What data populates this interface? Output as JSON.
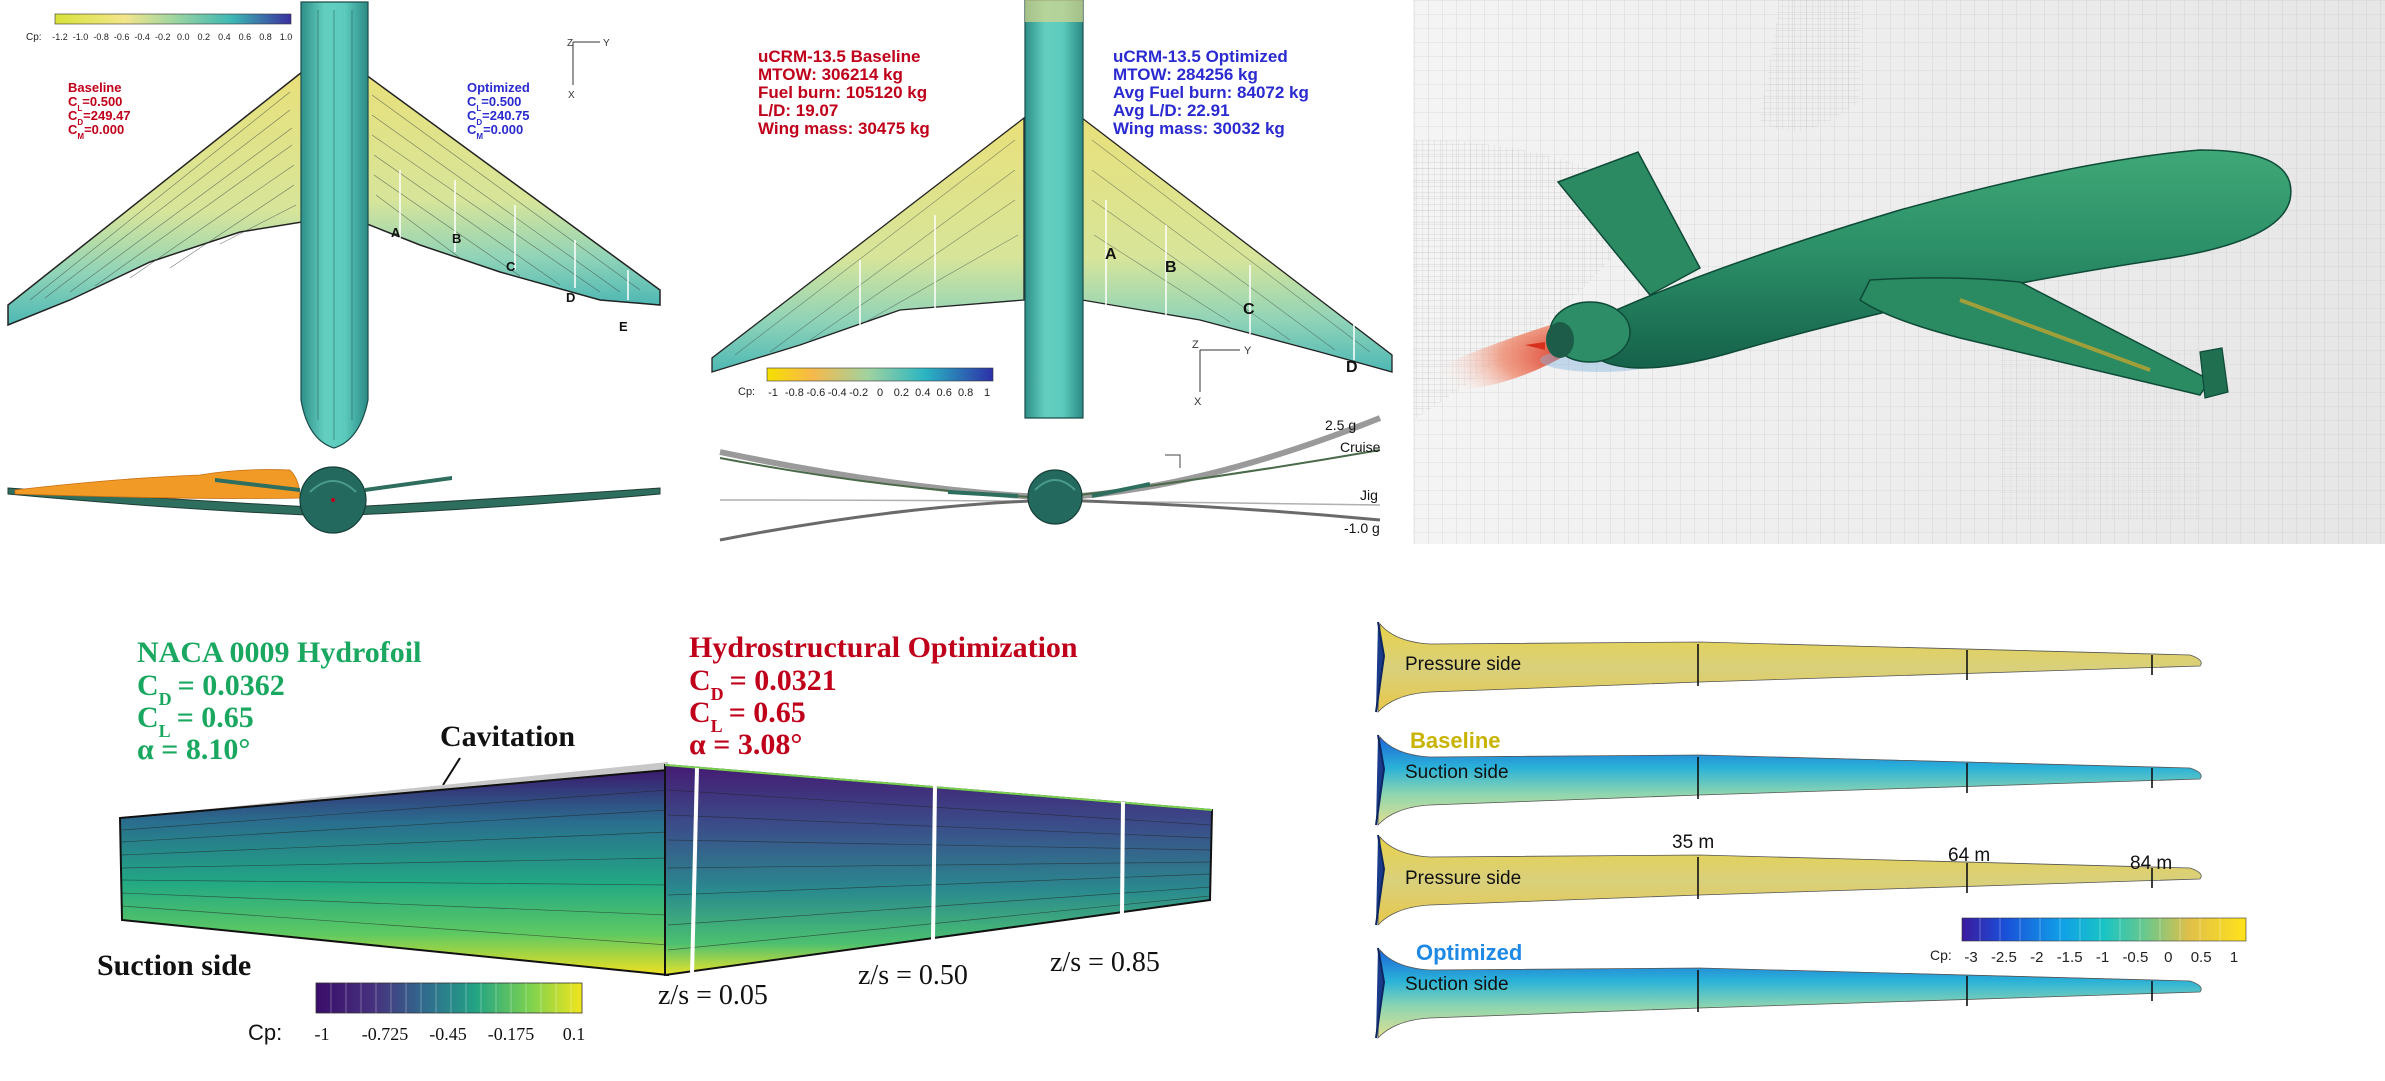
{
  "colors": {
    "red": "#c0001a",
    "blue": "#2a2ad0",
    "green": "#1aa860",
    "gold": "#c8b400",
    "azure": "#1e88e5",
    "teal": "#2aa58a"
  },
  "panel1": {
    "colorbar_label": "Cp:",
    "colorbar_ticks": [
      "-1.2",
      "-1.0",
      "-0.8",
      "-0.6",
      "-0.4",
      "-0.2",
      "0.0",
      "0.2",
      "0.4",
      "0.6",
      "0.8",
      "1.0"
    ],
    "axes": {
      "z": "Z",
      "y": "Y",
      "x": "X"
    },
    "baseline": {
      "title": "Baseline",
      "cl": "=0.500",
      "cd": "=249.47",
      "cm": "=0.000"
    },
    "optimized": {
      "title": "Optimized",
      "cl": "=0.500",
      "cd": "=240.75",
      "cm": "=0.000"
    },
    "coef_letter": "C",
    "sub": {
      "l": "L",
      "d": "D",
      "m": "M"
    },
    "stations": [
      "A",
      "B",
      "C",
      "D",
      "E"
    ]
  },
  "panel2": {
    "baseline": [
      "uCRM-13.5 Baseline",
      "MTOW: 306214 kg",
      "Fuel burn: 105120 kg",
      "L/D: 19.07",
      "Wing mass: 30475 kg"
    ],
    "optimized": [
      "uCRM-13.5 Optimized",
      "MTOW: 284256 kg",
      "Avg Fuel burn: 84072 kg",
      "Avg L/D: 22.91",
      "Wing mass: 30032 kg"
    ],
    "stations": [
      "A",
      "B",
      "C",
      "D"
    ],
    "colorbar_label": "Cp:",
    "colorbar_ticks": [
      "-1",
      "-0.8",
      "-0.6",
      "-0.4",
      "-0.2",
      "0",
      "0.2",
      "0.4",
      "0.6",
      "0.8",
      "1"
    ],
    "axes": {
      "z": "Z",
      "y": "Y",
      "x": "X"
    },
    "deflection_labels": [
      "2.5 g",
      "Cruise",
      "Jig",
      "-1.0 g"
    ]
  },
  "panel4": {
    "left": {
      "title": "NACA 0009 Hydrofoil",
      "cd": "= 0.0362",
      "cl": "= 0.65",
      "alpha": "α = 8.10°"
    },
    "right": {
      "title": "Hydrostructural Optimization",
      "cd": "= 0.0321",
      "cl": "= 0.65",
      "alpha": "α = 3.08°"
    },
    "coef_letter": "C",
    "sub": {
      "d": "D",
      "l": "L"
    },
    "cavitation": "Cavitation",
    "suction_side": "Suction side",
    "stations": [
      "z/s = 0.05",
      "z/s = 0.50",
      "z/s = 0.85"
    ],
    "colorbar_label": "Cp:",
    "colorbar_ticks": [
      "-1",
      "-0.725",
      "-0.45",
      "-0.175",
      "0.1"
    ]
  },
  "panel5": {
    "labels": {
      "pressure_side": "Pressure side",
      "suction_side": "Suction side",
      "baseline": "Baseline",
      "optimized": "Optimized"
    },
    "stations": [
      "35 m",
      "64 m",
      "84 m"
    ],
    "colorbar_label": "Cp:",
    "colorbar_ticks": [
      "-3",
      "-2.5",
      "-2",
      "-1.5",
      "-1",
      "-0.5",
      "0",
      "0.5",
      "1"
    ]
  }
}
